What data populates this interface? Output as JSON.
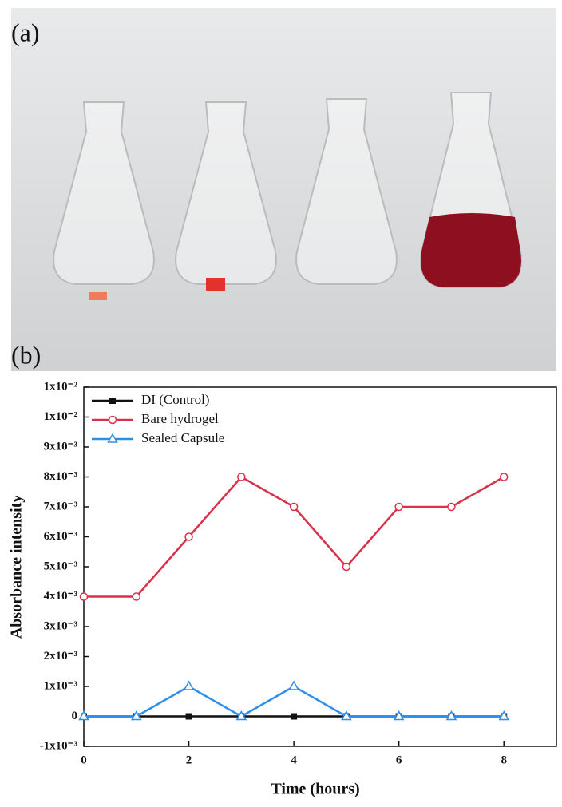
{
  "panel_labels": [
    "(a)",
    "(b)"
  ],
  "chart_data": {
    "type": "line",
    "y_label": "Absorbance intensity",
    "x_label": "Time (hours)",
    "x": [
      0,
      1,
      2,
      3,
      4,
      5,
      6,
      7,
      8
    ],
    "series": [
      {
        "name": "DI (Control)",
        "color": "#111111",
        "marker": "square",
        "values": [
          0,
          0,
          0,
          0,
          0,
          0,
          0,
          0,
          0
        ]
      },
      {
        "name": "Bare hydrogel",
        "color": "#d8324a",
        "marker": "circle",
        "values": [
          0.004,
          0.004,
          0.006,
          0.008,
          0.007,
          0.005,
          0.007,
          0.007,
          0.008
        ]
      },
      {
        "name": "Sealed Capsule",
        "color": "#2f8fe8",
        "marker": "triangle",
        "values": [
          0,
          0,
          0.001,
          0,
          0.001,
          0,
          0,
          0,
          0
        ]
      }
    ],
    "xlim": [
      0,
      9
    ],
    "xticks": [
      0,
      2,
      4,
      6,
      8
    ],
    "ylim": [
      -0.001,
      0.011
    ],
    "yticks": [
      {
        "value": -0.001,
        "label": "-1x10⁻³"
      },
      0,
      {
        "value": 0.001,
        "label": "1x10⁻³"
      },
      {
        "value": 0.002,
        "label": "2x10⁻³"
      },
      {
        "value": 0.003,
        "label": "3x10⁻³"
      },
      {
        "value": 0.004,
        "label": "4x10⁻³"
      },
      {
        "value": 0.005,
        "label": "5x10⁻³"
      },
      {
        "value": 0.006,
        "label": "6x10⁻³"
      },
      {
        "value": 0.007,
        "label": "7x10⁻³"
      },
      {
        "value": 0.008,
        "label": "8x10⁻³"
      },
      {
        "value": 0.009,
        "label": "9x10⁻³"
      },
      {
        "value": 0.01,
        "label": "1x10⁻²"
      },
      {
        "value": 0.011,
        "label": "1x10⁻²"
      }
    ],
    "legend": "upper left"
  }
}
